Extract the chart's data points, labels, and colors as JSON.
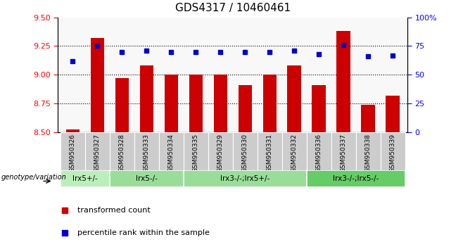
{
  "title": "GDS4317 / 10460461",
  "samples": [
    "GSM950326",
    "GSM950327",
    "GSM950328",
    "GSM950333",
    "GSM950334",
    "GSM950335",
    "GSM950329",
    "GSM950330",
    "GSM950331",
    "GSM950332",
    "GSM950336",
    "GSM950337",
    "GSM950338",
    "GSM950339"
  ],
  "bar_values": [
    8.52,
    9.32,
    8.97,
    9.08,
    9.0,
    9.0,
    9.0,
    8.91,
    9.0,
    9.08,
    8.91,
    9.38,
    8.74,
    8.82
  ],
  "dot_values": [
    62,
    75,
    70,
    71,
    70,
    70,
    70,
    70,
    70,
    71,
    68,
    76,
    66,
    67
  ],
  "bar_color": "#cc0000",
  "dot_color": "#0000cc",
  "ylim_left": [
    8.5,
    9.5
  ],
  "ylim_right": [
    0,
    100
  ],
  "yticks_left": [
    8.5,
    8.75,
    9.0,
    9.25,
    9.5
  ],
  "yticks_right": [
    0,
    25,
    50,
    75,
    100
  ],
  "groups": [
    {
      "label": "lrx5+/-",
      "start": 0,
      "end": 2
    },
    {
      "label": "lrx5-/-",
      "start": 2,
      "end": 5
    },
    {
      "label": "lrx3-/-;lrx5+/-",
      "start": 5,
      "end": 10
    },
    {
      "label": "lrx3-/-;lrx5-/-",
      "start": 10,
      "end": 14
    }
  ],
  "group_colors": [
    "#bbeebb",
    "#99dd99",
    "#99dd99",
    "#66cc66"
  ],
  "legend_bar_label": "transformed count",
  "legend_dot_label": "percentile rank within the sample",
  "grid_yticks": [
    8.75,
    9.0,
    9.25
  ],
  "xlabel_label": "genotype/variation",
  "sample_box_color": "#cccccc",
  "plot_bg_color": "#f8f8f8"
}
